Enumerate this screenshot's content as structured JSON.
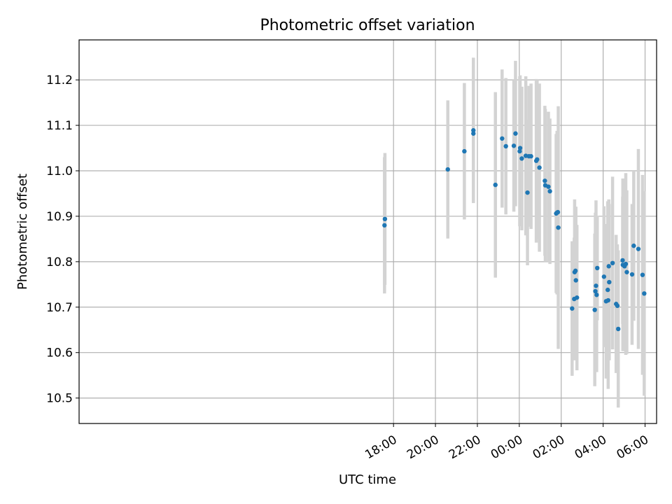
{
  "chart_data": {
    "type": "scatter",
    "title": "Photometric offset variation",
    "xlabel": "UTC time",
    "ylabel": "Photometric offset",
    "x_unit": "hours relative to 00:00 UTC",
    "xlim": [
      -21.0,
      6.55
    ],
    "ylim": [
      10.444,
      11.288
    ],
    "grid": true,
    "x_ticks": [
      {
        "value": -6,
        "label": "18:00"
      },
      {
        "value": -4,
        "label": "20:00"
      },
      {
        "value": -2,
        "label": "22:00"
      },
      {
        "value": 0,
        "label": "00:00"
      },
      {
        "value": 2,
        "label": "02:00"
      },
      {
        "value": 4,
        "label": "04:00"
      },
      {
        "value": 6,
        "label": "06:00"
      }
    ],
    "y_ticks": [
      {
        "value": 10.5,
        "label": "10.5"
      },
      {
        "value": 10.6,
        "label": "10.6"
      },
      {
        "value": 10.7,
        "label": "10.7"
      },
      {
        "value": 10.8,
        "label": "10.8"
      },
      {
        "value": 10.9,
        "label": "10.9"
      },
      {
        "value": 11.0,
        "label": "11.0"
      },
      {
        "value": 11.1,
        "label": "11.1"
      },
      {
        "value": 11.2,
        "label": "11.2"
      }
    ],
    "colors": {
      "points": "#1f77b4",
      "errorbars": "#d3d3d3",
      "grid": "#b0b0b0"
    },
    "series": [
      {
        "x": [
          -6.43,
          -6.41,
          -3.41,
          -2.62,
          -2.19,
          -2.19,
          -1.14,
          -0.82,
          -0.64,
          -0.26,
          -0.18,
          0.02,
          0.04,
          0.12,
          0.31,
          0.39,
          0.46,
          0.56,
          0.81,
          0.85,
          0.96,
          1.22,
          1.24,
          1.39,
          1.46,
          1.76,
          1.8,
          1.84,
          1.86,
          2.52,
          2.62,
          2.64,
          2.68,
          2.7,
          2.75,
          3.6,
          3.63,
          3.66,
          3.69,
          3.72,
          4.04,
          4.14,
          4.22,
          4.24,
          4.27,
          4.29,
          4.45,
          4.62,
          4.68,
          4.72,
          4.93,
          4.94,
          5.02,
          5.08,
          5.13,
          5.38,
          5.46,
          5.68,
          5.88,
          5.96
        ],
        "y": [
          10.88,
          10.894,
          11.003,
          11.043,
          11.082,
          11.089,
          10.969,
          11.071,
          11.054,
          11.055,
          11.082,
          11.043,
          11.05,
          11.027,
          11.033,
          10.952,
          11.032,
          11.032,
          11.022,
          11.025,
          11.007,
          10.978,
          10.968,
          10.965,
          10.955,
          10.906,
          10.908,
          10.909,
          10.875,
          10.697,
          10.718,
          10.777,
          10.78,
          10.759,
          10.721,
          10.694,
          10.735,
          10.747,
          10.727,
          10.786,
          10.767,
          10.713,
          10.738,
          10.715,
          10.79,
          10.755,
          10.797,
          10.707,
          10.703,
          10.652,
          10.803,
          10.793,
          10.79,
          10.795,
          10.777,
          10.772,
          10.835,
          10.828,
          10.771,
          10.73
        ],
        "err": [
          0.15,
          0.145,
          0.152,
          0.15,
          0.15,
          0.16,
          0.204,
          0.152,
          0.15,
          0.145,
          0.16,
          0.165,
          0.16,
          0.158,
          0.175,
          0.16,
          0.155,
          0.16,
          0.18,
          0.175,
          0.185,
          0.165,
          0.168,
          0.165,
          0.16,
          0.175,
          0.18,
          0.148,
          0.267,
          0.148,
          0.135,
          0.16,
          0.14,
          0.162,
          0.16,
          0.168,
          0.173,
          0.188,
          0.17,
          0.115,
          0.155,
          0.17,
          0.195,
          0.195,
          0.147,
          0.172,
          0.19,
          0.152,
          0.135,
          0.173,
          0.14,
          0.19,
          0.18,
          0.2,
          0.18,
          0.155,
          0.165,
          0.22,
          0.22,
          0.225
        ]
      }
    ]
  }
}
